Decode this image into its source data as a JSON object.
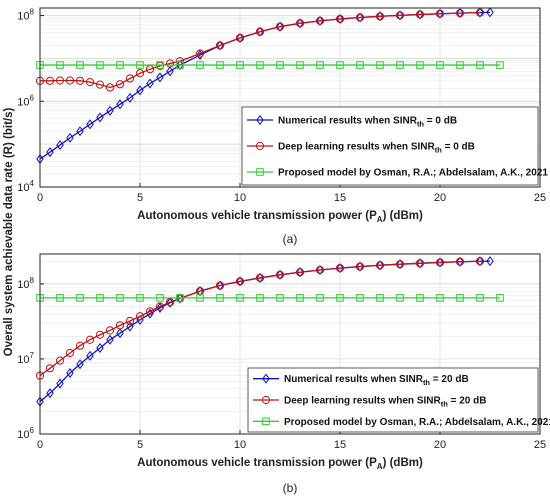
{
  "figure": {
    "ylabel": "Overall system achievable data rate (R) (bit/s)"
  },
  "chart_data": [
    {
      "type": "line",
      "caption": "(a)",
      "xlabel": "Autonomous vehicle transmission power (P_A) (dBm)",
      "xlabel_main": "Autonomous vehicle transmission power (P",
      "xlabel_sub": "A",
      "xlabel_end": ") (dBm)",
      "xlim": [
        0,
        25
      ],
      "ylim": [
        10000,
        150000000
      ],
      "yscale": "log",
      "x_ticks": [
        "0",
        "5",
        "10",
        "15",
        "20",
        "25"
      ],
      "y_ticks": [
        {
          "value": 10000,
          "base": "10",
          "exp": "4"
        },
        {
          "value": 1000000,
          "base": "10",
          "exp": "6"
        },
        {
          "value": 100000000,
          "base": "10",
          "exp": "8"
        }
      ],
      "grid": true,
      "legend_position": "right",
      "series": [
        {
          "name": "Numerical results when SINR_th = 0 dB",
          "name_pre": "Numerical results when SINR",
          "name_sub": "th",
          "name_post": " = 0 dB",
          "color": "#1010c0",
          "marker": "diamond",
          "x": [
            0,
            0.5,
            1,
            1.5,
            2,
            2.5,
            3,
            3.5,
            4,
            4.5,
            5,
            5.5,
            6,
            6.5,
            7,
            8,
            9,
            10,
            11,
            12,
            13,
            14,
            15,
            16,
            17,
            18,
            19,
            20,
            21,
            22,
            22.5
          ],
          "y": [
            45000,
            65000,
            95000,
            140000,
            200000,
            290000,
            420000,
            600000,
            850000,
            1200000,
            1800000,
            2600000,
            3600000,
            5000000,
            7000000,
            12000000,
            20000000,
            30000000,
            42000000,
            55000000,
            66000000,
            75000000,
            83000000,
            90000000,
            96000000,
            101000000,
            106000000,
            110000000,
            114000000,
            117000000,
            119000000
          ]
        },
        {
          "name": "Deep learning results when SINR_th = 0 dB",
          "name_pre": "Deep learning results when SINR",
          "name_sub": "th",
          "name_post": " = 0 dB",
          "color": "#c01515",
          "marker": "circle",
          "x": [
            0,
            0.5,
            1,
            1.5,
            2,
            2.5,
            3,
            3.5,
            4,
            4.5,
            5,
            5.5,
            6,
            6.5,
            7,
            8,
            9,
            10,
            11,
            12,
            13,
            14,
            15,
            16,
            17,
            18,
            19,
            20,
            21,
            22
          ],
          "y": [
            3000000,
            3000000,
            3050000,
            3050000,
            3000000,
            2800000,
            2450000,
            2100000,
            2500000,
            3400000,
            4500000,
            5600000,
            6700000,
            7600000,
            8600000,
            13000000,
            20000000,
            30000000,
            42000000,
            55000000,
            66000000,
            75000000,
            83000000,
            90000000,
            96000000,
            101000000,
            106000000,
            110000000,
            114000000,
            117000000
          ]
        },
        {
          "name": "Proposed model by Osman, R.A.; Abdelsalam, A.K., 2021",
          "name_pre": "Proposed model by Osman, R.A.; Abdelsalam, A.K., 2021",
          "name_sub": "",
          "name_post": "",
          "color": "#33cc33",
          "marker": "square",
          "x": [
            0,
            1,
            2,
            3,
            4,
            5,
            6,
            7,
            8,
            9,
            10,
            11,
            12,
            13,
            14,
            15,
            16,
            17,
            18,
            19,
            20,
            21,
            22,
            23
          ],
          "y": [
            7000000,
            7000000,
            7000000,
            7000000,
            7000000,
            7000000,
            7000000,
            7000000,
            7000000,
            7000000,
            7000000,
            7000000,
            7000000,
            7000000,
            7000000,
            7000000,
            7000000,
            7000000,
            7000000,
            7000000,
            7000000,
            7000000,
            7000000,
            7000000
          ]
        }
      ]
    },
    {
      "type": "line",
      "caption": "(b)",
      "xlabel": "Autonomous vehicle transmission power (P_A) (dBm)",
      "xlabel_main": "Autonomous vehicle transmission power (P",
      "xlabel_sub": "A",
      "xlabel_end": ") (dBm)",
      "xlim": [
        0,
        25
      ],
      "ylim": [
        1000000,
        250000000
      ],
      "yscale": "log",
      "x_ticks": [
        "0",
        "5",
        "10",
        "15",
        "20",
        "25"
      ],
      "y_ticks": [
        {
          "value": 1000000,
          "base": "10",
          "exp": "6"
        },
        {
          "value": 10000000,
          "base": "10",
          "exp": "7"
        },
        {
          "value": 100000000,
          "base": "10",
          "exp": "8"
        }
      ],
      "grid": true,
      "legend_position": "bottom-right",
      "series": [
        {
          "name": "Numerical results when SINR_th = 20 dB",
          "name_pre": "Numerical results when SINR",
          "name_sub": "th",
          "name_post": " = 20 dB",
          "color": "#1010c0",
          "marker": "diamond",
          "x": [
            0,
            0.5,
            1,
            1.5,
            2,
            2.5,
            3,
            3.5,
            4,
            4.5,
            5,
            5.5,
            6,
            6.5,
            7,
            8,
            9,
            10,
            11,
            12,
            13,
            14,
            15,
            16,
            17,
            18,
            19,
            20,
            21,
            22,
            22.5
          ],
          "y": [
            2700000,
            3500000,
            4700000,
            6500000,
            8500000,
            11000000,
            14000000,
            18000000,
            22000000,
            27000000,
            33000000,
            40000000,
            48000000,
            56000000,
            64000000,
            80000000,
            95000000,
            108000000,
            120000000,
            132000000,
            143000000,
            153000000,
            162000000,
            170000000,
            177000000,
            183000000,
            188000000,
            193000000,
            197000000,
            200000000,
            201000000
          ]
        },
        {
          "name": "Deep learning results when SINR_th = 20 dB",
          "name_pre": "Deep learning results when SINR",
          "name_sub": "th",
          "name_post": " = 20 dB",
          "color": "#c01515",
          "marker": "circle",
          "x": [
            0,
            0.5,
            1,
            1.5,
            2,
            2.5,
            3,
            3.5,
            4,
            4.5,
            5,
            5.5,
            6,
            6.5,
            7,
            8,
            9,
            10,
            11,
            12,
            13,
            14,
            15,
            16,
            17,
            18,
            19,
            20,
            21,
            22
          ],
          "y": [
            6000000,
            7500000,
            9500000,
            12000000,
            15000000,
            18000000,
            21000000,
            24000000,
            28000000,
            32000000,
            37000000,
            43000000,
            50000000,
            57000000,
            64000000,
            80000000,
            95000000,
            108000000,
            120000000,
            132000000,
            143000000,
            153000000,
            162000000,
            170000000,
            177000000,
            183000000,
            188000000,
            193000000,
            197000000,
            200000000
          ]
        },
        {
          "name": "Proposed model by Osman, R.A.; Abdelsalam, A.K., 2021",
          "name_pre": "Proposed model by Osman, R.A.; Abdelsalam, A.K., 2021",
          "name_sub": "",
          "name_post": "",
          "color": "#33cc33",
          "marker": "square",
          "x": [
            0,
            1,
            2,
            3,
            4,
            5,
            6,
            7,
            8,
            9,
            10,
            11,
            12,
            13,
            14,
            15,
            16,
            17,
            18,
            19,
            20,
            21,
            22,
            23
          ],
          "y": [
            65000000,
            65000000,
            65000000,
            65000000,
            65000000,
            65000000,
            65000000,
            65000000,
            65000000,
            65000000,
            65000000,
            65000000,
            65000000,
            65000000,
            65000000,
            65000000,
            65000000,
            65000000,
            65000000,
            65000000,
            65000000,
            65000000,
            65000000,
            65000000
          ]
        }
      ]
    }
  ]
}
